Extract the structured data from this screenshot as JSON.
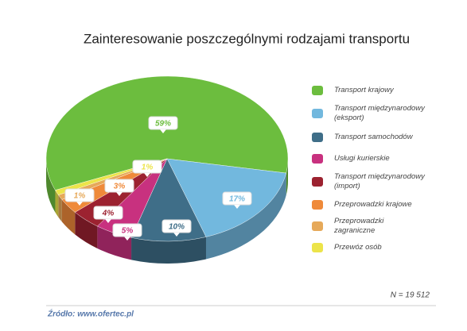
{
  "chart_data": {
    "type": "pie",
    "title": "Zainteresowanie poszczególnymi rodzajami transportu",
    "categories": [
      "Transport krajowy",
      "Transport międzynarodowy (eksport)",
      "Transport samochodów",
      "Usługi kurierskie",
      "Transport międzynarodowy (import)",
      "Przeprowadzki krajowe",
      "Przeprowadzki zagraniczne",
      "Przewóz osób"
    ],
    "values": [
      59,
      17,
      10,
      5,
      4,
      3,
      1,
      1
    ],
    "value_labels": [
      "59%",
      "17%",
      "10%",
      "5%",
      "4%",
      "3%",
      "1%",
      "1%"
    ],
    "colors": [
      "#6cbd3e",
      "#72b8de",
      "#3f6e88",
      "#c8317f",
      "#9c2230",
      "#ef8a3a",
      "#e6a95a",
      "#ece44a"
    ],
    "note": "N = 19 512",
    "source": "Źródło: www.ofertec.pl"
  }
}
